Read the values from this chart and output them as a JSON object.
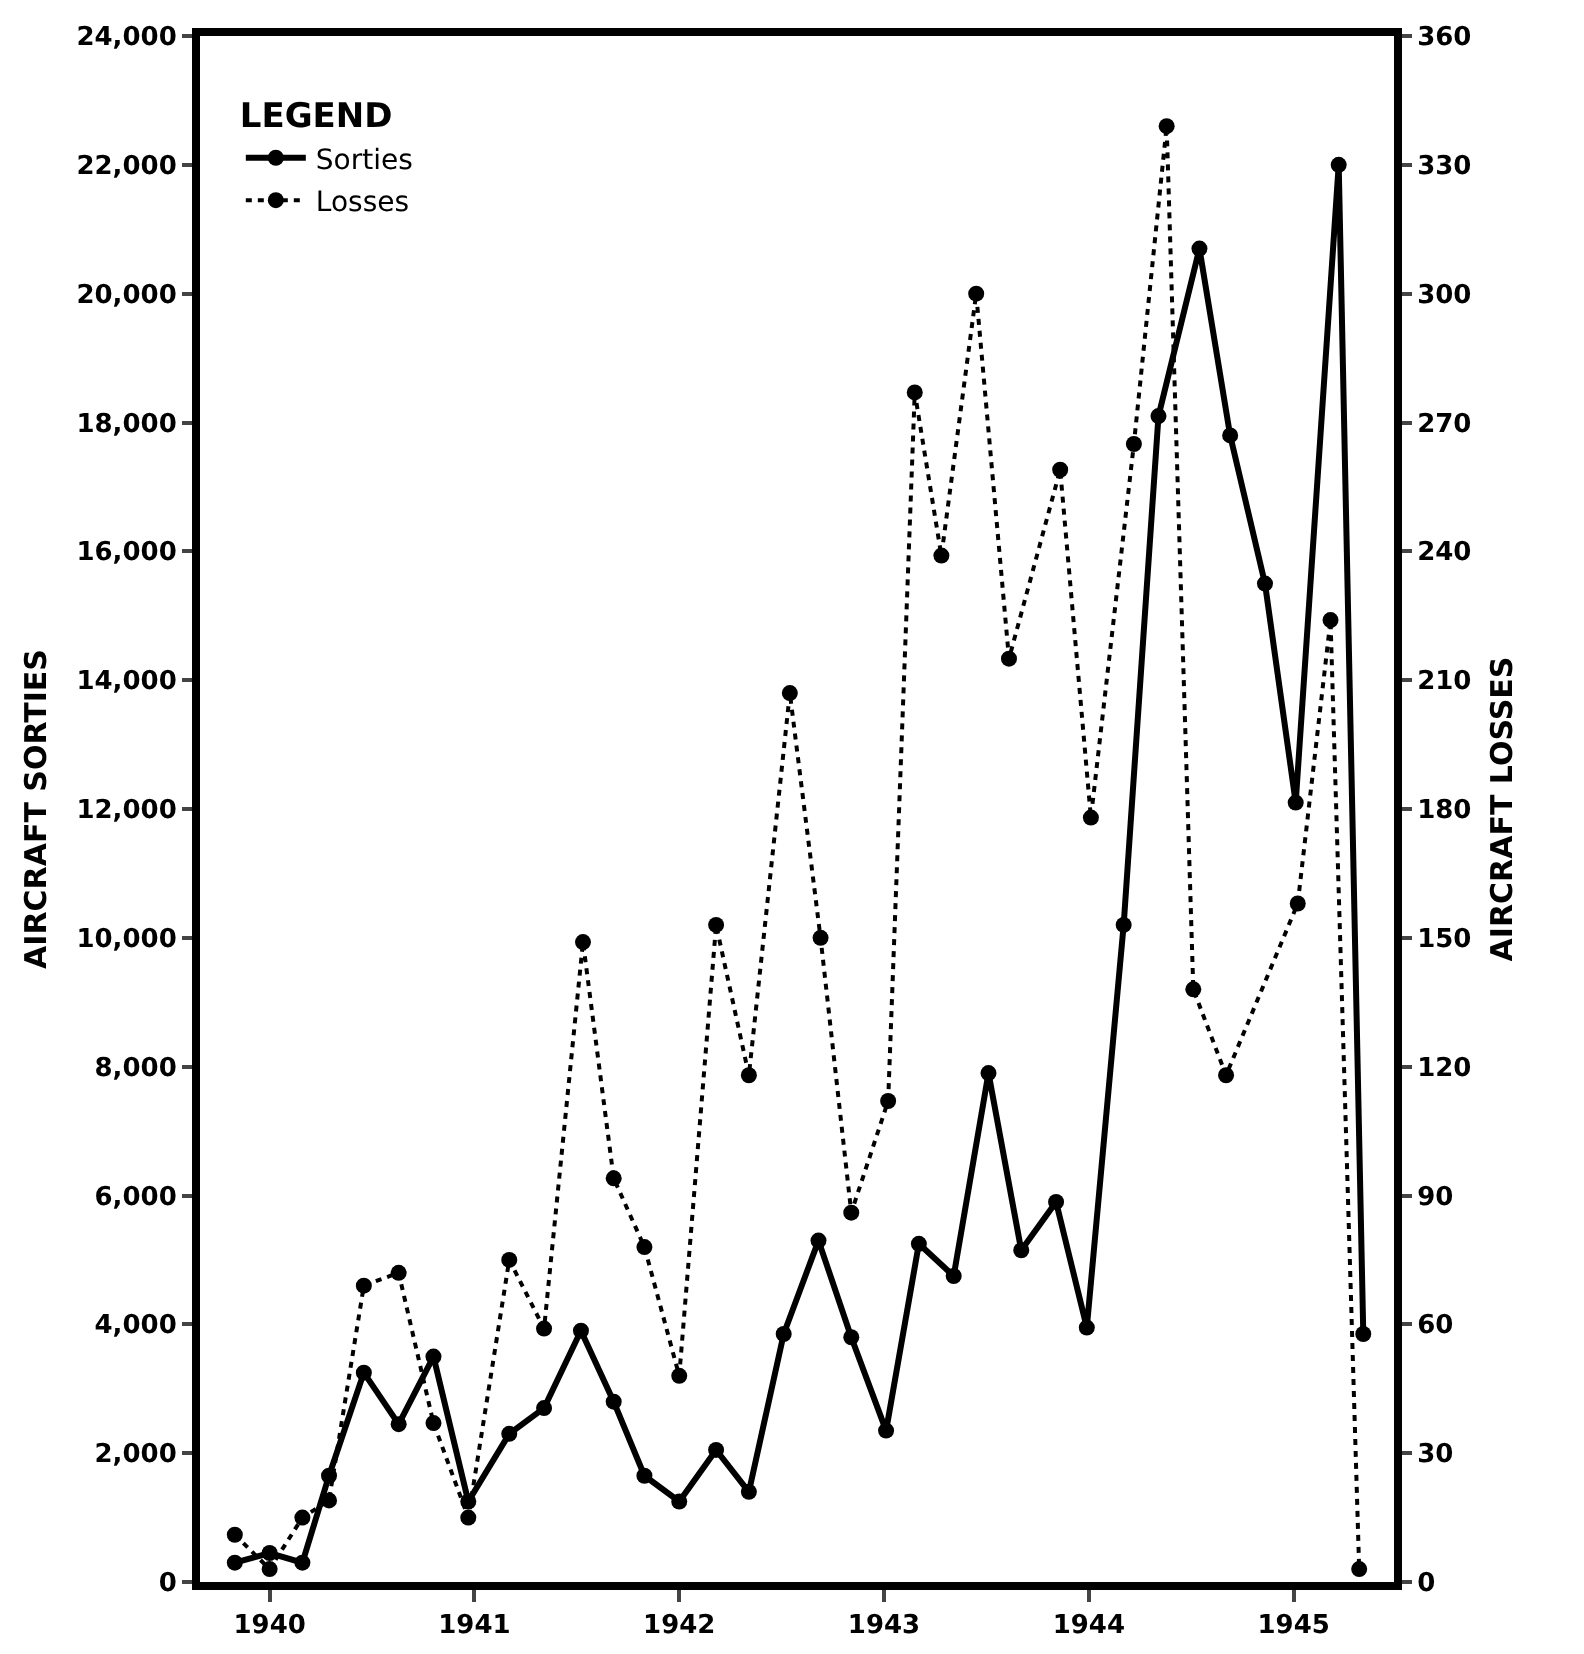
{
  "chart_data": {
    "type": "line",
    "ylabel": "AIRCRAFT SORTIES",
    "y2label": "AIRCRAFT LOSSES",
    "legend_title": "LEGEND",
    "legend": "top left",
    "marker": "circle",
    "grid": false,
    "xlim": [
      1939.66,
      1945.49
    ],
    "xticks": [
      1940,
      1941,
      1942,
      1943,
      1944,
      1945
    ],
    "ylim": [
      0,
      24000
    ],
    "yticks": [
      0,
      {
        "value": 2000,
        "label": "2,000"
      },
      {
        "value": 4000,
        "label": "4,000"
      },
      {
        "value": 6000,
        "label": "6,000"
      },
      {
        "value": 8000,
        "label": "8,000"
      },
      {
        "value": 10000,
        "label": "10,000"
      },
      {
        "value": 12000,
        "label": "12,000"
      },
      {
        "value": 14000,
        "label": "14,000"
      },
      {
        "value": 16000,
        "label": "16,000"
      },
      {
        "value": 18000,
        "label": "18,000"
      },
      {
        "value": 20000,
        "label": "20,000"
      },
      {
        "value": 22000,
        "label": "22,000"
      },
      {
        "value": 24000,
        "label": "24,000"
      }
    ],
    "y2lim": [
      0,
      360
    ],
    "y2ticks": [
      0,
      30,
      60,
      90,
      120,
      150,
      180,
      210,
      240,
      270,
      300,
      330,
      360
    ],
    "series": [
      {
        "name": "Sorties",
        "color": "#000000",
        "line_style": "solid",
        "x": [
          1939.83,
          1940.0,
          1940.16,
          1940.29,
          1940.46,
          1940.63,
          1940.8,
          1940.97,
          1941.17,
          1941.34,
          1941.52,
          1941.68,
          1941.83,
          1942.0,
          1942.18,
          1942.34,
          1942.51,
          1942.68,
          1942.84,
          1943.01,
          1943.17,
          1943.34,
          1943.51,
          1943.67,
          1943.84,
          1943.99,
          1944.17,
          1944.34,
          1944.54,
          1944.69,
          1944.86,
          1945.01,
          1945.22,
          1945.34
        ],
        "values": [
          300,
          450,
          300,
          1650,
          3250,
          2450,
          3500,
          1250,
          2300,
          2700,
          3900,
          2800,
          1650,
          1250,
          2050,
          1400,
          3850,
          5300,
          3800,
          2350,
          5250,
          4750,
          7900,
          5150,
          5900,
          3950,
          10200,
          18100,
          20700,
          17800,
          15500,
          12100,
          22000,
          3850
        ]
      },
      {
        "name": "Losses",
        "color": "#000000",
        "line_style": "dotted",
        "axis": "y2",
        "x": [
          1939.83,
          1940.0,
          1940.16,
          1940.29,
          1940.46,
          1940.63,
          1940.8,
          1940.97,
          1941.17,
          1941.34,
          1941.53,
          1941.68,
          1941.83,
          1942.0,
          1942.18,
          1942.34,
          1942.54,
          1942.69,
          1942.84,
          1943.02,
          1943.15,
          1943.28,
          1943.45,
          1943.61,
          1943.86,
          1944.01,
          1944.22,
          1944.38,
          1944.51,
          1944.67,
          1945.02,
          1945.18,
          1945.32
        ],
        "values": [
          11,
          3,
          15,
          19,
          69,
          72,
          37,
          15,
          75,
          59,
          149,
          94,
          78,
          48,
          153,
          118,
          207,
          150,
          86,
          112,
          277,
          239,
          300,
          215,
          259,
          178,
          265,
          339,
          138,
          118,
          158,
          224,
          3
        ]
      }
    ]
  }
}
